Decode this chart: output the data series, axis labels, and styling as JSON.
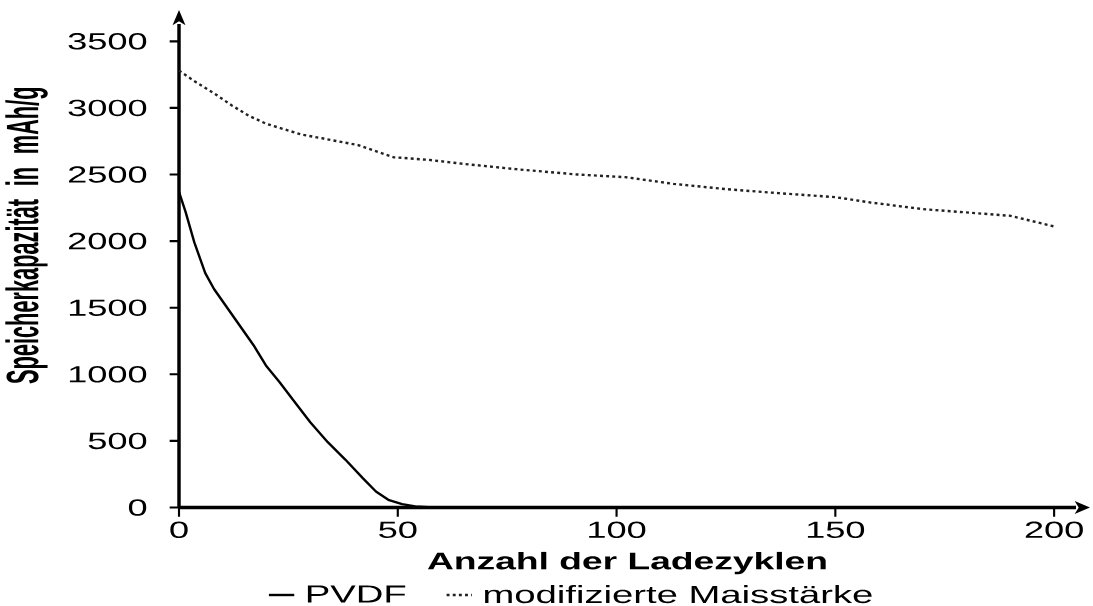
{
  "chart_data": {
    "type": "line",
    "xlabel": "Anzahl der Ladezyklen",
    "ylabel": "Speicherkapazität in mAh/g",
    "xlim": [
      0,
      205
    ],
    "ylim": [
      0,
      3630
    ],
    "xticks": [
      0,
      50,
      100,
      150,
      200
    ],
    "yticks": [
      0,
      500,
      1000,
      1500,
      2000,
      2500,
      3000,
      3500
    ],
    "legend": "bottom",
    "series": [
      {
        "name": "PVDF",
        "color": "#000000",
        "line_style": "solid",
        "x": [
          0,
          1.5,
          3.5,
          6,
          8,
          11,
          14,
          17,
          20,
          23,
          26,
          30,
          34,
          38,
          42,
          45,
          48,
          51,
          54,
          58
        ],
        "values": [
          2370,
          2220,
          1990,
          1760,
          1640,
          1500,
          1360,
          1220,
          1060,
          940,
          810,
          640,
          490,
          360,
          220,
          120,
          55,
          25,
          8,
          0
        ]
      },
      {
        "name": "modifizierte Maisstärke",
        "color": "#222222",
        "line_style": "dotted",
        "x": [
          0,
          4,
          8,
          12,
          16,
          20,
          24,
          28,
          33,
          41,
          49,
          57,
          65,
          77,
          91,
          102,
          113,
          125,
          137,
          150,
          158,
          170,
          182,
          190,
          200
        ],
        "values": [
          3280,
          3190,
          3110,
          3020,
          2940,
          2880,
          2840,
          2800,
          2770,
          2720,
          2630,
          2610,
          2580,
          2540,
          2500,
          2480,
          2430,
          2390,
          2360,
          2330,
          2290,
          2240,
          2210,
          2190,
          2110
        ]
      }
    ]
  }
}
